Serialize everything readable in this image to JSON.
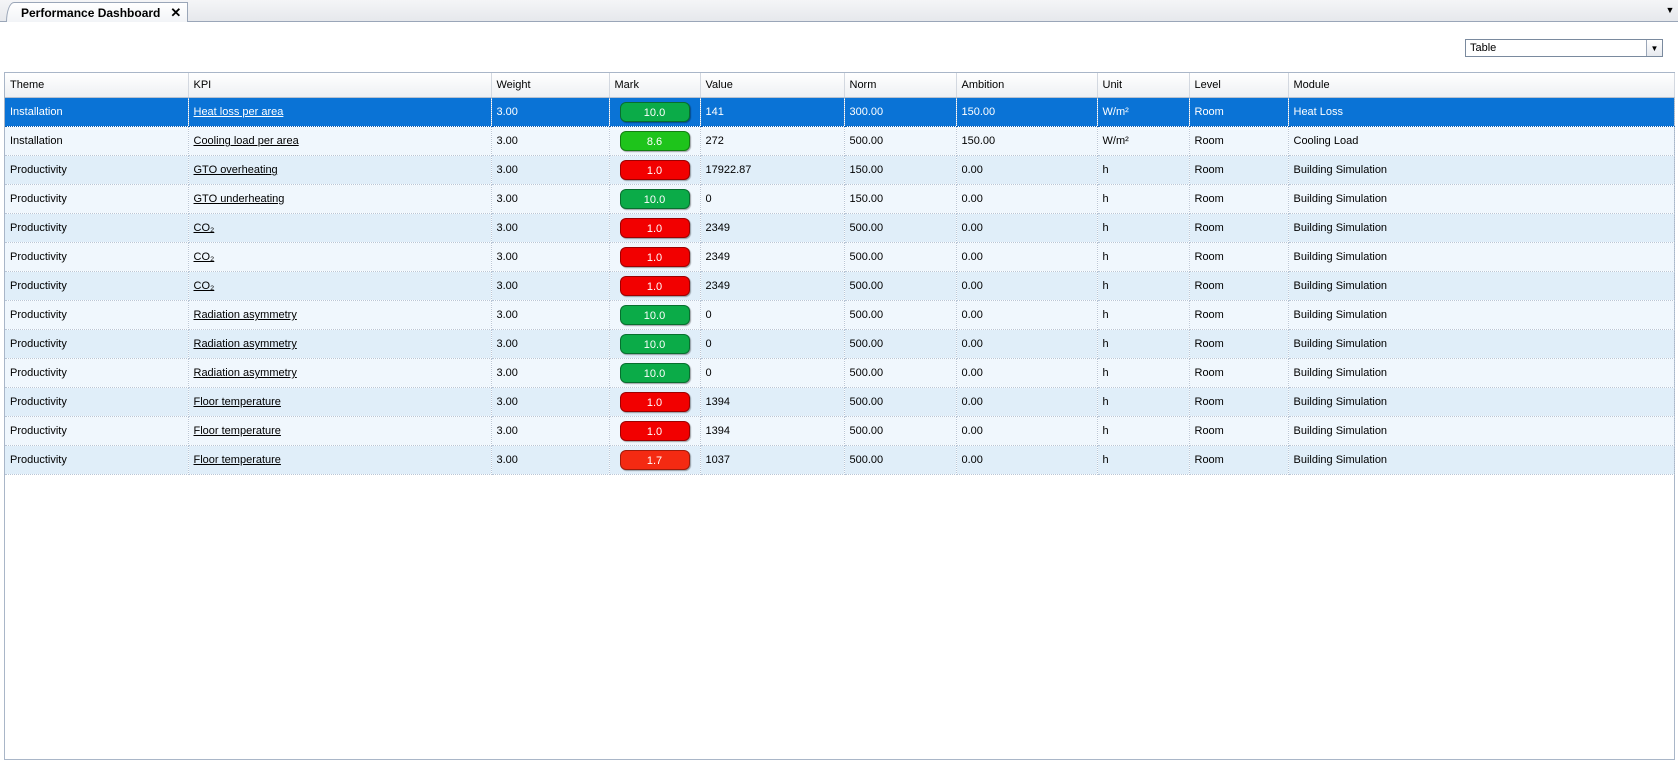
{
  "tab": {
    "title": "Performance Dashboard",
    "close_glyph": "✕",
    "menu_glyph": "▼"
  },
  "view_select": {
    "value": "Table",
    "arrow_glyph": "▼"
  },
  "colors": {
    "green": "#0bab48",
    "lime": "#1ec41b",
    "red": "#f20000",
    "orange_red": "#f42a12",
    "selected": "#0a73d6"
  },
  "columns": [
    "Theme",
    "KPI",
    "Weight",
    "Mark",
    "Value",
    "Norm",
    "Ambition",
    "Unit",
    "Level",
    "Module"
  ],
  "rows": [
    {
      "theme": "Installation",
      "kpi": "Heat loss per area",
      "weight": "3.00",
      "mark": "10.0",
      "mark_color": "#0bab48",
      "value": "141",
      "norm": "300.00",
      "ambition": "150.00",
      "unit": "W/m²",
      "level": "Room",
      "module": "Heat Loss",
      "selected": true
    },
    {
      "theme": "Installation",
      "kpi": "Cooling load per area",
      "weight": "3.00",
      "mark": "8.6",
      "mark_color": "#1ec41b",
      "value": "272",
      "norm": "500.00",
      "ambition": "150.00",
      "unit": "W/m²",
      "level": "Room",
      "module": "Cooling Load",
      "selected": false
    },
    {
      "theme": "Productivity",
      "kpi": "GTO overheating",
      "weight": "3.00",
      "mark": "1.0",
      "mark_color": "#f20000",
      "value": "17922.87",
      "norm": "150.00",
      "ambition": "0.00",
      "unit": "h",
      "level": "Room",
      "module": "Building Simulation",
      "selected": false
    },
    {
      "theme": "Productivity",
      "kpi": "GTO underheating",
      "weight": "3.00",
      "mark": "10.0",
      "mark_color": "#0bab48",
      "value": "0",
      "norm": "150.00",
      "ambition": "0.00",
      "unit": "h",
      "level": "Room",
      "module": "Building Simulation",
      "selected": false
    },
    {
      "theme": "Productivity",
      "kpi": "CO₂",
      "weight": "3.00",
      "mark": "1.0",
      "mark_color": "#f20000",
      "value": "2349",
      "norm": "500.00",
      "ambition": "0.00",
      "unit": "h",
      "level": "Room",
      "module": "Building Simulation",
      "selected": false
    },
    {
      "theme": "Productivity",
      "kpi": "CO₂",
      "weight": "3.00",
      "mark": "1.0",
      "mark_color": "#f20000",
      "value": "2349",
      "norm": "500.00",
      "ambition": "0.00",
      "unit": "h",
      "level": "Room",
      "module": "Building Simulation",
      "selected": false
    },
    {
      "theme": "Productivity",
      "kpi": "CO₂",
      "weight": "3.00",
      "mark": "1.0",
      "mark_color": "#f20000",
      "value": "2349",
      "norm": "500.00",
      "ambition": "0.00",
      "unit": "h",
      "level": "Room",
      "module": "Building Simulation",
      "selected": false
    },
    {
      "theme": "Productivity",
      "kpi": "Radiation asymmetry",
      "weight": "3.00",
      "mark": "10.0",
      "mark_color": "#0bab48",
      "value": "0",
      "norm": "500.00",
      "ambition": "0.00",
      "unit": "h",
      "level": "Room",
      "module": "Building Simulation",
      "selected": false
    },
    {
      "theme": "Productivity",
      "kpi": "Radiation asymmetry",
      "weight": "3.00",
      "mark": "10.0",
      "mark_color": "#0bab48",
      "value": "0",
      "norm": "500.00",
      "ambition": "0.00",
      "unit": "h",
      "level": "Room",
      "module": "Building Simulation",
      "selected": false
    },
    {
      "theme": "Productivity",
      "kpi": "Radiation asymmetry",
      "weight": "3.00",
      "mark": "10.0",
      "mark_color": "#0bab48",
      "value": "0",
      "norm": "500.00",
      "ambition": "0.00",
      "unit": "h",
      "level": "Room",
      "module": "Building Simulation",
      "selected": false
    },
    {
      "theme": "Productivity",
      "kpi": "Floor temperature",
      "weight": "3.00",
      "mark": "1.0",
      "mark_color": "#f20000",
      "value": "1394",
      "norm": "500.00",
      "ambition": "0.00",
      "unit": "h",
      "level": "Room",
      "module": "Building Simulation",
      "selected": false
    },
    {
      "theme": "Productivity",
      "kpi": "Floor temperature",
      "weight": "3.00",
      "mark": "1.0",
      "mark_color": "#f20000",
      "value": "1394",
      "norm": "500.00",
      "ambition": "0.00",
      "unit": "h",
      "level": "Room",
      "module": "Building Simulation",
      "selected": false
    },
    {
      "theme": "Productivity",
      "kpi": "Floor temperature",
      "weight": "3.00",
      "mark": "1.7",
      "mark_color": "#f42a12",
      "value": "1037",
      "norm": "500.00",
      "ambition": "0.00",
      "unit": "h",
      "level": "Room",
      "module": "Building Simulation",
      "selected": false
    }
  ]
}
